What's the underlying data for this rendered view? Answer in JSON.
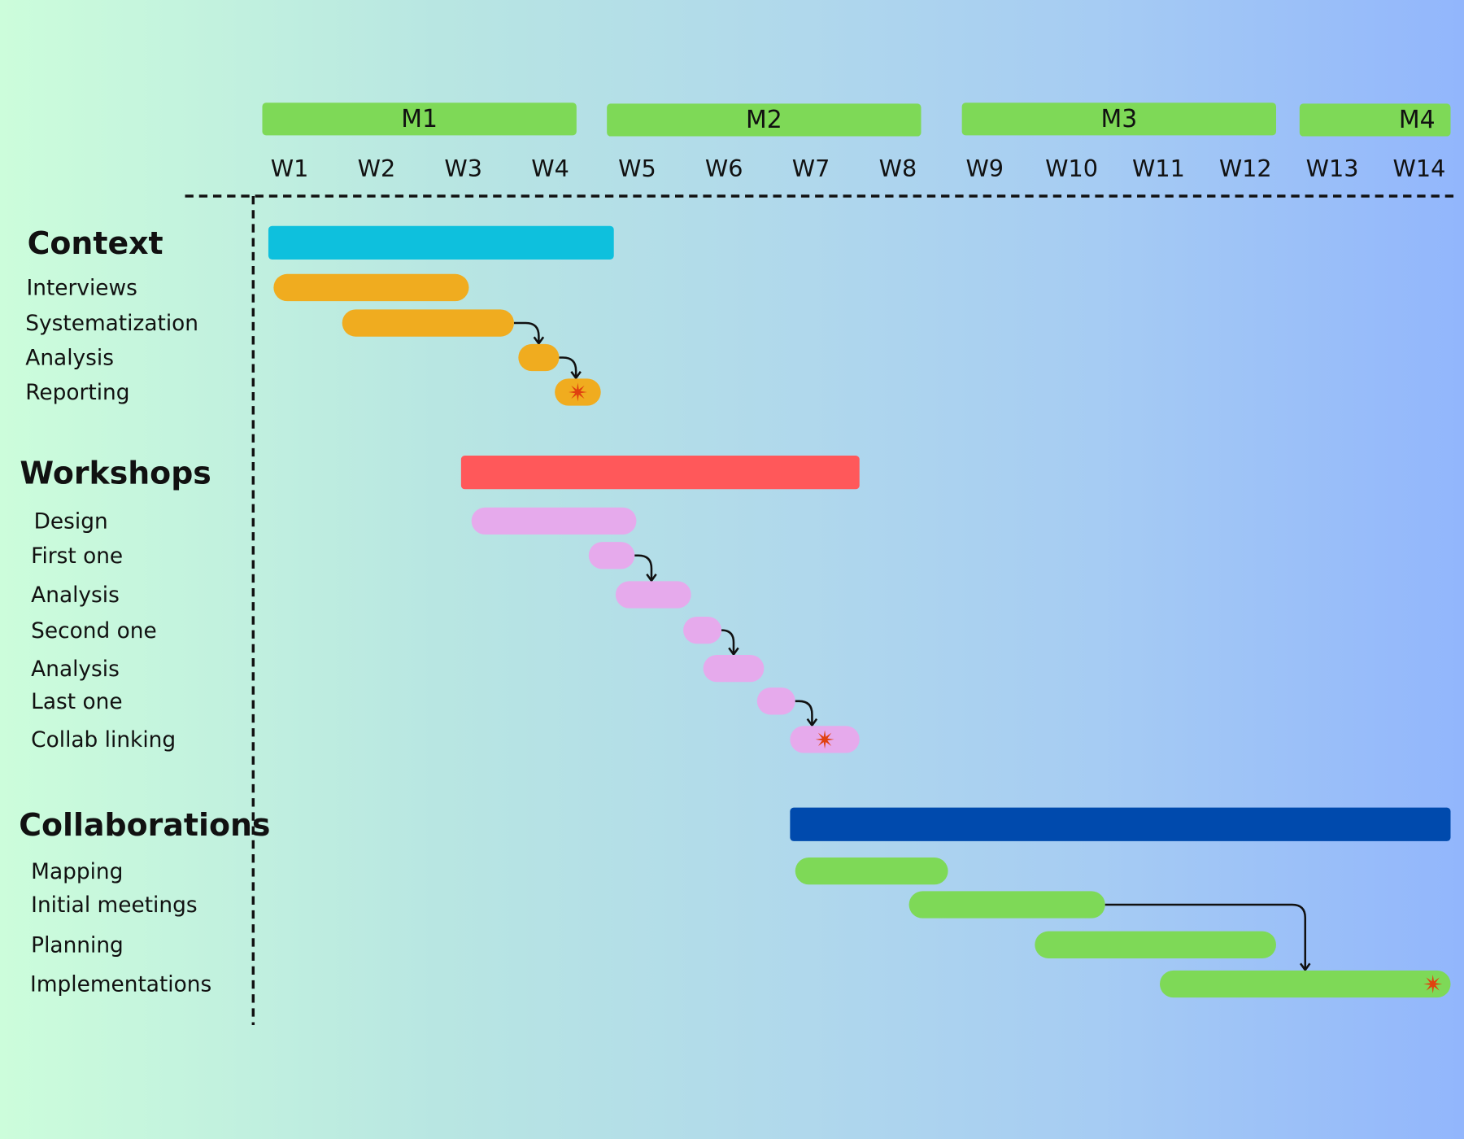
{
  "chart_data": {
    "type": "gantt",
    "x_unit": "weeks",
    "months": [
      {
        "label": "M1",
        "start": 0.18,
        "end": 3.8
      },
      {
        "label": "M2",
        "start": 4.15,
        "end": 7.77
      },
      {
        "label": "M3",
        "start": 8.24,
        "end": 11.86
      },
      {
        "label": "M4",
        "start": 12.13,
        "end": 13.87
      }
    ],
    "weeks": [
      "W1",
      "W2",
      "W3",
      "W4",
      "W5",
      "W6",
      "W7",
      "W8",
      "W9",
      "W10",
      "W11",
      "W12",
      "W13",
      "W14"
    ],
    "groups": [
      {
        "label": "Context",
        "color": "#0ec0dd",
        "start": 0.25,
        "end": 4.23,
        "task_color": "#f0ac1f",
        "tasks": [
          {
            "label": "Interviews",
            "start": 0.31,
            "end": 2.56
          },
          {
            "label": "Systematization",
            "start": 1.1,
            "end": 3.08,
            "depends_next": true
          },
          {
            "label": "Analysis",
            "start": 3.13,
            "end": 3.6,
            "depends_next": true
          },
          {
            "label": "Reporting",
            "start": 3.55,
            "end": 4.08,
            "milestone": true
          }
        ]
      },
      {
        "label": "Workshops",
        "color": "#ff585a",
        "start": 2.47,
        "end": 7.06,
        "task_color": "#e6aaec",
        "tasks": [
          {
            "label": "Design",
            "start": 2.59,
            "end": 4.49
          },
          {
            "label": "First one",
            "start": 3.94,
            "end": 4.47,
            "depends_next": true
          },
          {
            "label": "Analysis",
            "start": 4.25,
            "end": 5.12
          },
          {
            "label": "Second one",
            "start": 5.03,
            "end": 5.47,
            "depends_next": true
          },
          {
            "label": "Analysis",
            "start": 5.26,
            "end": 5.96
          },
          {
            "label": "Last one",
            "start": 5.88,
            "end": 6.32,
            "depends_next": true
          },
          {
            "label": "Collab linking",
            "start": 6.26,
            "end": 7.06,
            "milestone": true
          }
        ]
      },
      {
        "label": "Collaborations",
        "color": "#004aad",
        "start": 6.26,
        "end": 13.87,
        "task_color": "#7ed957",
        "tasks": [
          {
            "label": "Mapping",
            "start": 6.32,
            "end": 8.08
          },
          {
            "label": "Initial meetings",
            "start": 7.63,
            "end": 9.89,
            "depends_on_last": true
          },
          {
            "label": "Planning",
            "start": 9.08,
            "end": 11.86
          },
          {
            "label": "Implementations",
            "start": 10.52,
            "end": 13.87,
            "milestone": true
          }
        ]
      }
    ],
    "colors": {
      "month": "#7ed957",
      "milestone": "#e0410f",
      "arrow": "#111111"
    }
  }
}
